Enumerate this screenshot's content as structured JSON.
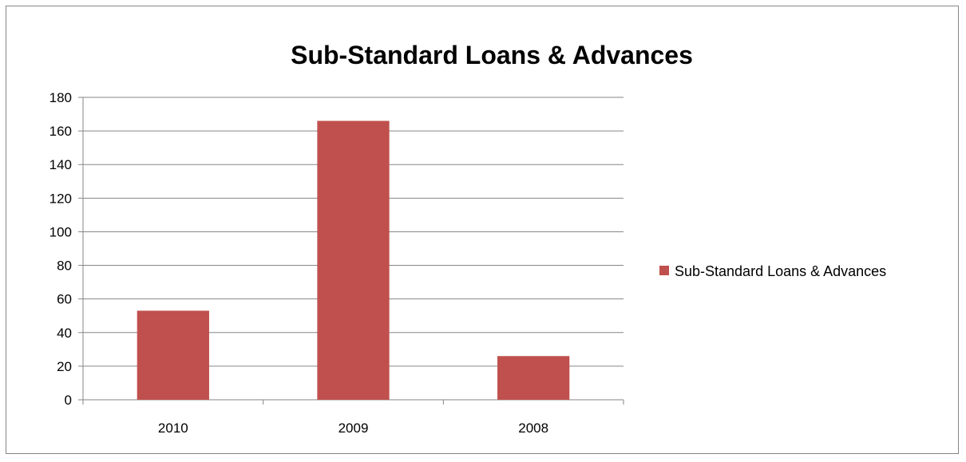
{
  "chart_data": {
    "type": "bar",
    "title": "Sub-Standard Loans & Advances",
    "categories": [
      "2010",
      "2009",
      "2008"
    ],
    "series": [
      {
        "name": "Sub-Standard Loans & Advances",
        "values": [
          53,
          166,
          26
        ],
        "color": "#C0504D"
      }
    ],
    "ylim": [
      0,
      180
    ],
    "yticks": [
      0,
      20,
      40,
      60,
      80,
      100,
      120,
      140,
      160,
      180
    ],
    "grid": true,
    "legend_position": "right"
  }
}
